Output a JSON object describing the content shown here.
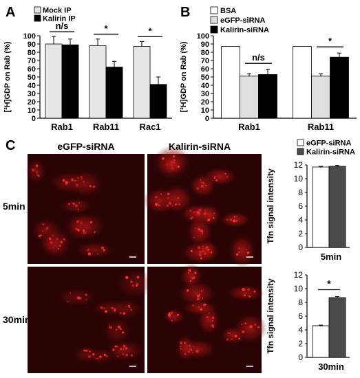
{
  "panels": {
    "a": {
      "letter": "A"
    },
    "b": {
      "letter": "B"
    },
    "c": {
      "letter": "C",
      "col_headers": [
        "eGFP-siRNA",
        "Kalirin-siRNA"
      ],
      "row_labels": [
        "5min",
        "30min"
      ]
    }
  },
  "colors": {
    "white_bar": "#ffffff",
    "light_gray_bar": "#dedede",
    "gray_bar": "#e6e6e6",
    "dark_gray_bar": "#4a4a4a",
    "black_bar": "#000000",
    "micrograph_bg": "#2a0404",
    "cell_red": "#c41a1a"
  },
  "chart_data": [
    {
      "id": "A",
      "type": "bar",
      "categories": [
        "Rab1",
        "Rab11",
        "Rac1"
      ],
      "series": [
        {
          "name": "Mock IP",
          "values": [
            90,
            88,
            87
          ],
          "errors": [
            9,
            8,
            6
          ],
          "color": "#e6e6e6"
        },
        {
          "name": "Kalirin IP",
          "values": [
            89,
            62,
            41
          ],
          "errors": [
            7,
            7,
            9
          ],
          "color": "#000000"
        }
      ],
      "ylabel": "[³H]GDP on Rab (%)",
      "ylim": [
        0,
        100
      ],
      "yticks": [
        0,
        10,
        20,
        30,
        40,
        50,
        60,
        70,
        80,
        90,
        100
      ],
      "significance": [
        "n/s",
        "*",
        "*"
      ],
      "legend_position": "top"
    },
    {
      "id": "B",
      "type": "bar",
      "categories": [
        "Rab1",
        "Rab11"
      ],
      "series": [
        {
          "name": "BSA",
          "values": [
            87,
            87
          ],
          "errors": [
            0,
            0
          ],
          "color": "#ffffff"
        },
        {
          "name": "eGFP-siRNA",
          "values": [
            51,
            51
          ],
          "errors": [
            3,
            3
          ],
          "color": "#dedede"
        },
        {
          "name": "Kalirin-siRNA",
          "values": [
            53,
            74
          ],
          "errors": [
            6,
            5
          ],
          "color": "#000000"
        }
      ],
      "ylabel": "[³H]GDP on Rab (%)",
      "ylim": [
        0,
        100
      ],
      "yticks": [
        0,
        10,
        20,
        30,
        40,
        50,
        60,
        70,
        80,
        90,
        100
      ],
      "significance": [
        "n/s",
        "*"
      ],
      "legend_position": "top"
    },
    {
      "id": "C-5min",
      "type": "bar",
      "categories": [
        "eGFP-siRNA",
        "Kalirin-siRNA"
      ],
      "series": [
        {
          "name": "Tfn signal intensity",
          "values": [
            11.7,
            11.8
          ],
          "errors": [
            0.1,
            0.15
          ]
        }
      ],
      "bar_colors": [
        "#ffffff",
        "#4a4a4a"
      ],
      "ylabel": "Tfn signal intensity",
      "xlabel": "5min",
      "ylim": [
        0,
        12
      ],
      "yticks": [
        0,
        2,
        4,
        6,
        8,
        10,
        12
      ],
      "legend": [
        "eGFP-siRNA",
        "Kalirin-siRNA"
      ]
    },
    {
      "id": "C-30min",
      "type": "bar",
      "categories": [
        "eGFP-siRNA",
        "Kalirin-siRNA"
      ],
      "series": [
        {
          "name": "Tfn signal intensity",
          "values": [
            4.6,
            8.7
          ],
          "errors": [
            0.1,
            0.15
          ]
        }
      ],
      "bar_colors": [
        "#ffffff",
        "#4a4a4a"
      ],
      "ylabel": "Tfn signal intensity",
      "xlabel": "30min",
      "ylim": [
        0,
        12
      ],
      "yticks": [
        0,
        2,
        4,
        6,
        8,
        10,
        12
      ],
      "significance": [
        "*"
      ]
    }
  ]
}
